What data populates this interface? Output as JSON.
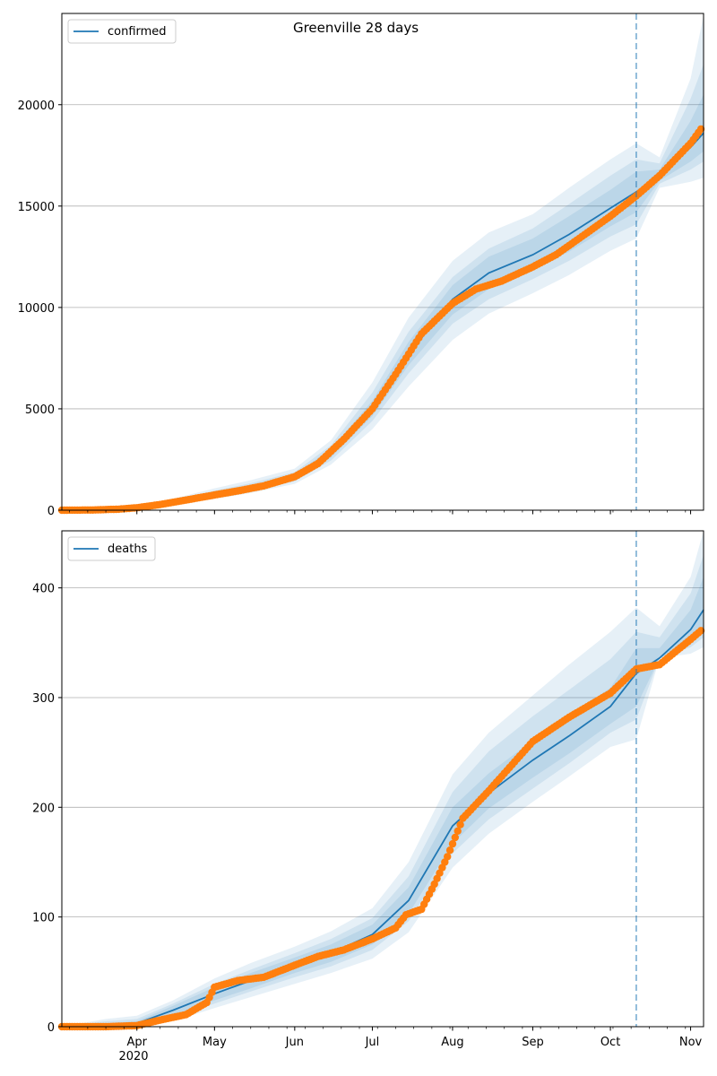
{
  "figure": {
    "title": "Greenville 28 days"
  },
  "colors": {
    "model_line": "#1f77b4",
    "observed": "#ff7f0e",
    "band": "#1f77b4",
    "grid": "#b0b0b0",
    "forecast_marker": "#1f77b4"
  },
  "x_axis": {
    "labels": [
      "Apr",
      "May",
      "Jun",
      "Jul",
      "Aug",
      "Sep",
      "Oct",
      "Nov"
    ],
    "year_label": "2020"
  },
  "chart_data": [
    {
      "type": "line",
      "title": "Greenville 28 days",
      "legend": "confirmed",
      "legend_position": "top-left",
      "grid": "horizontal",
      "xlim": [
        "2020-03-03",
        "2020-11-06"
      ],
      "ylim": [
        0,
        24500
      ],
      "yticks": [
        0,
        5000,
        10000,
        15000,
        20000
      ],
      "forecast_start": "2020-10-11",
      "x_ticks": [
        "2020-04-01",
        "2020-05-01",
        "2020-06-01",
        "2020-07-01",
        "2020-08-01",
        "2020-09-01",
        "2020-10-01",
        "2020-11-01"
      ],
      "series": [
        {
          "name": "confirmed",
          "kind": "model",
          "x": [
            "2020-03-03",
            "2020-03-15",
            "2020-04-01",
            "2020-04-15",
            "2020-05-01",
            "2020-05-15",
            "2020-06-01",
            "2020-06-15",
            "2020-07-01",
            "2020-07-15",
            "2020-08-01",
            "2020-08-15",
            "2020-09-01",
            "2020-09-15",
            "2020-10-01",
            "2020-10-11",
            "2020-10-20",
            "2020-11-01",
            "2020-11-06"
          ],
          "values": [
            0,
            30,
            120,
            380,
            760,
            1100,
            1650,
            2800,
            5000,
            7700,
            10400,
            11700,
            12600,
            13600,
            14900,
            15700,
            16500,
            17900,
            18600
          ],
          "bands": [
            {
              "lower": [
                0,
                10,
                60,
                260,
                560,
                850,
                1300,
                2250,
                4000,
                6100,
                8400,
                9700,
                10700,
                11600,
                12800,
                13400,
                15900,
                16200,
                16400
              ],
              "upper": [
                0,
                60,
                200,
                560,
                1080,
                1480,
                2050,
                3450,
                6300,
                9500,
                12300,
                13700,
                14600,
                15900,
                17300,
                18100,
                17400,
                21300,
                24400
              ]
            },
            {
              "lower": [
                0,
                15,
                75,
                300,
                630,
                950,
                1420,
                2450,
                4400,
                6750,
                9200,
                10400,
                11400,
                12300,
                13500,
                14100,
                16100,
                16800,
                17200
              ],
              "upper": [
                0,
                50,
                170,
                490,
                960,
                1330,
                1880,
                3200,
                5800,
                8800,
                11500,
                12900,
                13900,
                15100,
                16500,
                17300,
                17100,
                20300,
                22000
              ]
            },
            {
              "lower": [
                0,
                20,
                90,
                330,
                680,
                1010,
                1510,
                2600,
                4650,
                7150,
                9650,
                10900,
                11850,
                12750,
                14000,
                14700,
                16250,
                17200,
                17700
              ],
              "upper": [
                0,
                45,
                150,
                440,
                870,
                1230,
                1780,
                3020,
                5400,
                8300,
                11100,
                12500,
                13400,
                14500,
                15800,
                16700,
                16800,
                19200,
                20500
              ]
            }
          ]
        },
        {
          "name": "observed confirmed",
          "kind": "observed",
          "x": [
            "2020-03-03",
            "2020-03-15",
            "2020-03-25",
            "2020-04-01",
            "2020-04-10",
            "2020-04-20",
            "2020-05-01",
            "2020-05-10",
            "2020-05-20",
            "2020-06-01",
            "2020-06-10",
            "2020-06-20",
            "2020-07-01",
            "2020-07-10",
            "2020-07-20",
            "2020-08-01",
            "2020-08-10",
            "2020-08-20",
            "2020-09-01",
            "2020-09-10",
            "2020-09-20",
            "2020-10-01",
            "2020-10-11",
            "2020-10-20",
            "2020-11-01",
            "2020-11-05"
          ],
          "values": [
            0,
            10,
            50,
            120,
            280,
            500,
            750,
            950,
            1200,
            1650,
            2300,
            3500,
            5000,
            6700,
            8700,
            10200,
            10900,
            11300,
            12000,
            12600,
            13500,
            14500,
            15500,
            16500,
            18100,
            18800
          ]
        }
      ]
    },
    {
      "type": "line",
      "title": "",
      "legend": "deaths",
      "legend_position": "top-left",
      "grid": "horizontal",
      "xlim": [
        "2020-03-03",
        "2020-11-06"
      ],
      "ylim": [
        0,
        452
      ],
      "yticks": [
        0,
        100,
        200,
        300,
        400
      ],
      "forecast_start": "2020-10-11",
      "x_ticks": [
        "2020-04-01",
        "2020-05-01",
        "2020-06-01",
        "2020-07-01",
        "2020-08-01",
        "2020-09-01",
        "2020-10-01",
        "2020-11-01"
      ],
      "series": [
        {
          "name": "deaths",
          "kind": "model",
          "x": [
            "2020-03-03",
            "2020-03-20",
            "2020-04-01",
            "2020-04-15",
            "2020-05-01",
            "2020-05-15",
            "2020-06-01",
            "2020-06-15",
            "2020-07-01",
            "2020-07-15",
            "2020-08-01",
            "2020-08-15",
            "2020-09-01",
            "2020-09-15",
            "2020-10-01",
            "2020-10-11",
            "2020-10-20",
            "2020-11-01",
            "2020-11-06"
          ],
          "values": [
            0,
            0,
            3,
            15,
            30,
            42,
            56,
            67,
            84,
            115,
            183,
            213,
            243,
            265,
            292,
            322,
            336,
            362,
            380
          ],
          "bands": [
            {
              "lower": [
                0,
                0,
                0,
                5,
                17,
                27,
                39,
                49,
                62,
                86,
                145,
                176,
                205,
                228,
                255,
                262,
                336,
                340,
                346
              ],
              "upper": [
                0,
                7,
                10,
                24,
                44,
                58,
                73,
                87,
                108,
                150,
                230,
                268,
                302,
                330,
                360,
                382,
                365,
                410,
                452
              ]
            },
            {
              "lower": [
                0,
                0,
                1,
                8,
                21,
                32,
                45,
                55,
                70,
                96,
                158,
                189,
                217,
                240,
                268,
                280,
                336,
                346,
                355
              ],
              "upper": [
                0,
                5,
                7,
                21,
                39,
                52,
                67,
                80,
                99,
                137,
                214,
                251,
                283,
                307,
                335,
                360,
                355,
                395,
                430
              ]
            },
            {
              "lower": [
                0,
                0,
                1,
                10,
                24,
                35,
                49,
                59,
                75,
                103,
                167,
                199,
                227,
                249,
                276,
                292,
                336,
                350,
                362
              ],
              "upper": [
                0,
                3,
                5,
                19,
                36,
                49,
                63,
                75,
                93,
                127,
                200,
                231,
                261,
                284,
                309,
                345,
                345,
                380,
                410
              ]
            }
          ]
        },
        {
          "name": "observed deaths",
          "kind": "observed",
          "x": [
            "2020-03-03",
            "2020-03-20",
            "2020-04-01",
            "2020-04-10",
            "2020-04-20",
            "2020-04-28",
            "2020-05-01",
            "2020-05-10",
            "2020-05-20",
            "2020-06-01",
            "2020-06-10",
            "2020-06-20",
            "2020-07-01",
            "2020-07-10",
            "2020-07-14",
            "2020-07-20",
            "2020-07-25",
            "2020-07-30",
            "2020-08-05",
            "2020-08-15",
            "2020-09-01",
            "2020-09-15",
            "2020-10-01",
            "2020-10-11",
            "2020-10-20",
            "2020-11-01",
            "2020-11-05"
          ],
          "values": [
            0,
            0,
            1,
            6,
            11,
            22,
            36,
            42,
            45,
            56,
            64,
            70,
            80,
            90,
            102,
            107,
            130,
            155,
            190,
            215,
            260,
            282,
            304,
            326,
            330,
            353,
            361
          ]
        }
      ]
    }
  ]
}
